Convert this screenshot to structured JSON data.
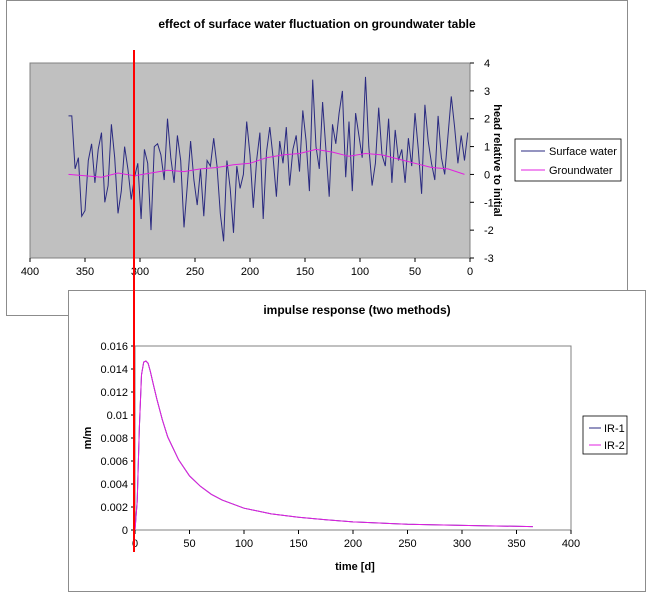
{
  "colors": {
    "series1": "#2a2a80",
    "series2": "#e020e0",
    "marker_line": "#ff0000",
    "plot_bg_top": "#c0c0c0"
  },
  "chart_data": [
    {
      "type": "line",
      "title": "effect of surface water fluctuation on groundwater table",
      "xlabel": "",
      "ylabel": "head relative to initial",
      "xlim": [
        400,
        0
      ],
      "ylim": [
        -3,
        4
      ],
      "x_ticks": [
        "400",
        "350",
        "300",
        "250",
        "200",
        "150",
        "100",
        "50",
        "0"
      ],
      "y_ticks": [
        "-3",
        "-2",
        "-1",
        "0",
        "1",
        "2",
        "3",
        "4"
      ],
      "y_axis_side": "right",
      "grid": false,
      "legend": "right",
      "series": [
        {
          "name": "Surface water",
          "x": [
            365,
            362,
            359,
            356,
            353,
            350,
            347,
            344,
            341,
            338,
            335,
            332,
            329,
            326,
            323,
            320,
            317,
            314,
            311,
            308,
            305,
            302,
            299,
            296,
            293,
            290,
            287,
            284,
            281,
            278,
            275,
            272,
            269,
            266,
            263,
            260,
            257,
            254,
            251,
            248,
            245,
            242,
            239,
            236,
            233,
            230,
            227,
            224,
            221,
            218,
            215,
            212,
            209,
            206,
            203,
            200,
            197,
            194,
            191,
            188,
            185,
            182,
            179,
            176,
            173,
            170,
            167,
            164,
            161,
            158,
            155,
            152,
            149,
            146,
            143,
            140,
            137,
            134,
            131,
            128,
            125,
            122,
            119,
            116,
            113,
            110,
            107,
            104,
            101,
            98,
            95,
            92,
            89,
            86,
            83,
            80,
            77,
            74,
            71,
            68,
            65,
            62,
            59,
            56,
            53,
            50,
            47,
            44,
            41,
            38,
            35,
            32,
            29,
            26,
            23,
            20,
            17,
            14,
            11,
            8,
            5,
            2
          ],
          "y": [
            2.1,
            2.1,
            0.2,
            0.6,
            -1.5,
            -1.3,
            0.5,
            1.1,
            -0.3,
            0.9,
            1.5,
            -1.0,
            -0.4,
            1.8,
            0.6,
            -1.4,
            -0.6,
            1.0,
            0.2,
            -0.9,
            -0.1,
            0.4,
            -1.6,
            0.9,
            0.4,
            -2.0,
            1.0,
            1.1,
            0.7,
            -0.2,
            2.0,
            0.6,
            -0.3,
            1.4,
            0.5,
            -1.9,
            -0.4,
            1.2,
            -0.2,
            -1.1,
            0.2,
            -1.5,
            0.5,
            0.3,
            1.3,
            0.3,
            -1.4,
            -2.4,
            0.5,
            -0.5,
            -2.1,
            0.3,
            -0.5,
            0.0,
            1.9,
            0.7,
            -1.2,
            0.5,
            1.5,
            -1.6,
            0.8,
            1.7,
            0.6,
            -0.8,
            1.2,
            0.4,
            1.7,
            -0.4,
            0.9,
            1.4,
            0.1,
            2.3,
            1.2,
            -0.6,
            3.4,
            1.0,
            0.2,
            2.6,
            0.9,
            -0.8,
            1.8,
            1.1,
            2.2,
            3.0,
            -0.1,
            1.9,
            -0.6,
            2.2,
            1.4,
            0.6,
            3.5,
            1.0,
            -0.4,
            0.4,
            2.4,
            0.7,
            0.3,
            2.0,
            -0.3,
            1.6,
            0.5,
            0.9,
            -0.3,
            1.3,
            0.3,
            2.2,
            0.9,
            -0.7,
            2.5,
            1.2,
            0.4,
            -0.2,
            2.1,
            0.6,
            0.0,
            1.4,
            2.8,
            1.7,
            0.4,
            1.4,
            0.5,
            1.5
          ]
        },
        {
          "name": "Groundwater",
          "x": [
            365,
            350,
            335,
            320,
            305,
            290,
            275,
            260,
            245,
            230,
            215,
            200,
            185,
            170,
            155,
            140,
            125,
            110,
            95,
            80,
            65,
            50,
            35,
            20,
            5
          ],
          "y": [
            0.0,
            -0.05,
            -0.1,
            0.05,
            -0.05,
            0.05,
            0.15,
            0.1,
            0.2,
            0.25,
            0.35,
            0.4,
            0.6,
            0.7,
            0.75,
            0.9,
            0.8,
            0.65,
            0.75,
            0.7,
            0.55,
            0.4,
            0.25,
            0.2,
            0.0
          ]
        }
      ]
    },
    {
      "type": "line",
      "title": "impulse response (two methods)",
      "xlabel": "time [d]",
      "ylabel": "m/m",
      "xlim": [
        0,
        400
      ],
      "ylim": [
        0,
        0.016
      ],
      "x_ticks": [
        "0",
        "50",
        "100",
        "150",
        "200",
        "250",
        "300",
        "350",
        "400"
      ],
      "y_ticks": [
        "0",
        "0.002",
        "0.004",
        "0.006",
        "0.008",
        "0.01",
        "0.012",
        "0.014",
        "0.016"
      ],
      "grid": false,
      "legend": "right",
      "series": [
        {
          "name": "IR-1",
          "x": [
            0,
            2,
            4,
            6,
            8,
            10,
            12,
            14,
            17,
            20,
            25,
            30,
            40,
            50,
            60,
            70,
            80,
            100,
            125,
            150,
            175,
            200,
            250,
            300,
            365
          ],
          "y": [
            0.0,
            0.0025,
            0.009,
            0.0135,
            0.0146,
            0.0147,
            0.0145,
            0.0138,
            0.0126,
            0.0114,
            0.0096,
            0.0081,
            0.0061,
            0.0047,
            0.0038,
            0.0031,
            0.0026,
            0.0019,
            0.0014,
            0.0011,
            0.0009,
            0.0007,
            0.0005,
            0.0004,
            0.0003
          ]
        },
        {
          "name": "IR-2",
          "x": [
            0,
            2,
            4,
            6,
            8,
            10,
            12,
            14,
            17,
            20,
            25,
            30,
            40,
            50,
            60,
            70,
            80,
            100,
            125,
            150,
            175,
            200,
            250,
            300,
            365
          ],
          "y": [
            0.0,
            0.0025,
            0.009,
            0.0135,
            0.0146,
            0.0147,
            0.0145,
            0.0138,
            0.0126,
            0.0114,
            0.0096,
            0.0081,
            0.0061,
            0.0047,
            0.0038,
            0.0031,
            0.0026,
            0.0019,
            0.0014,
            0.0011,
            0.0009,
            0.0007,
            0.0005,
            0.0004,
            0.0003
          ]
        }
      ]
    }
  ]
}
